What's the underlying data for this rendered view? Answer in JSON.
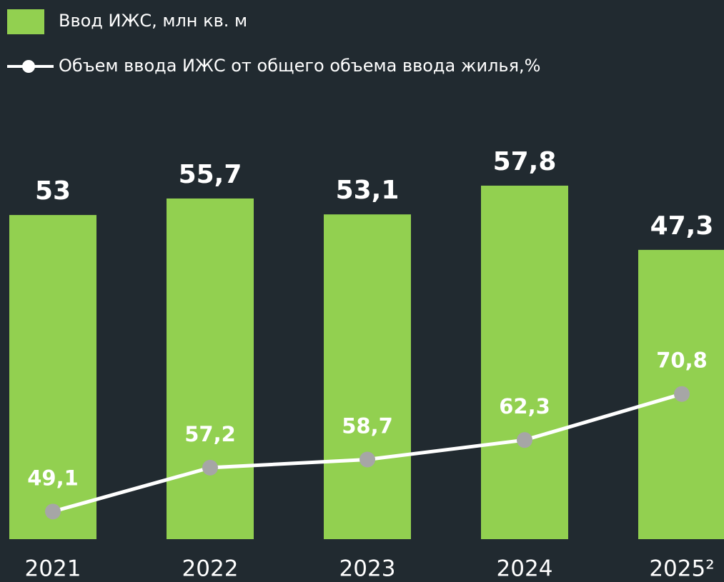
{
  "chart_data": {
    "type": "combo",
    "categories": [
      "2021",
      "2022",
      "2023",
      "2024",
      "2025²"
    ],
    "series": [
      {
        "name": "Ввод ИЖС, млн кв. м",
        "type": "bar",
        "color": "#92d050",
        "values": [
          53,
          55.7,
          53.1,
          57.8,
          47.3
        ],
        "value_labels": [
          "53",
          "55,7",
          "53,1",
          "57,8",
          "47,3"
        ]
      },
      {
        "name": "Объем ввода ИЖС от общего объема ввода жилья,%",
        "type": "line",
        "axis": "y2",
        "color": "#ffffff",
        "marker_color": "#a6a6a6",
        "values": [
          49.1,
          57.2,
          58.7,
          62.3,
          70.8
        ],
        "value_labels": [
          "49,1",
          "57,2",
          "58,7",
          "62,3",
          "70,8"
        ]
      }
    ],
    "ylim": [
      0,
      62
    ],
    "y2lim": [
      44,
      114
    ]
  }
}
